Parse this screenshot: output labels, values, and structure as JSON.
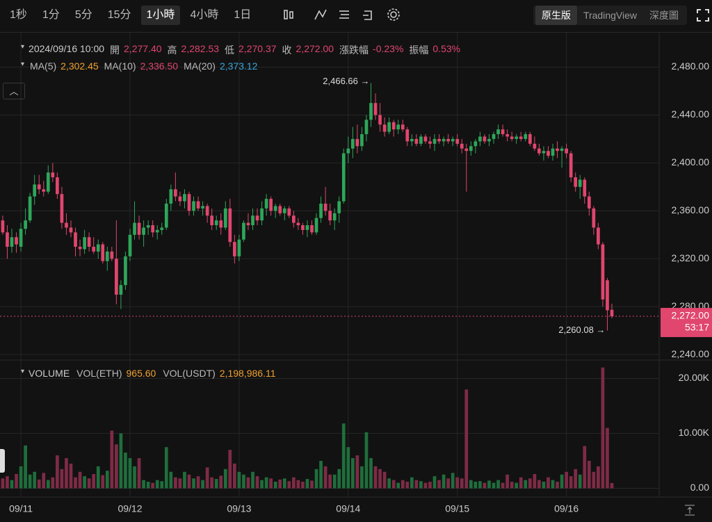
{
  "toolbar": {
    "intervals": [
      "1秒",
      "1分",
      "5分",
      "15分",
      "1小時",
      "4小時",
      "1日"
    ],
    "active": 4,
    "views": [
      "原生版",
      "TradingView",
      "深度圖"
    ],
    "active_view": 0
  },
  "info": {
    "time": "2024/09/16 10:00",
    "fields": [
      {
        "label": "開",
        "value": "2,277.40"
      },
      {
        "label": "高",
        "value": "2,282.53"
      },
      {
        "label": "低",
        "value": "2,270.37"
      },
      {
        "label": "收",
        "value": "2,272.00"
      },
      {
        "label": "漲跌幅",
        "value": "-0.23%"
      },
      {
        "label": "振幅",
        "value": "0.53%"
      }
    ],
    "ma": [
      {
        "label": "MA(5)",
        "value": "2,302.45",
        "color": "#f0a030"
      },
      {
        "label": "MA(10)",
        "value": "2,336.50",
        "color": "#e0466e"
      },
      {
        "label": "MA(20)",
        "value": "2,373.12",
        "color": "#3aa6dd"
      }
    ],
    "volume_title": "VOLUME",
    "volume_fields": [
      {
        "label": "VOL(ETH)",
        "value": "965.60"
      },
      {
        "label": "VOL(USDT)",
        "value": "2,198,986.11"
      }
    ]
  },
  "chart_data": {
    "type": "candlestick",
    "up_color": "#2ea65a",
    "down_color": "#e0466e",
    "volume_up_color": "#1f6e3c",
    "volume_down_color": "#7e2b46",
    "grid": true,
    "xlim": [
      -0.6,
      144.4
    ],
    "xticks": [
      {
        "value": 4,
        "label": "09/11"
      },
      {
        "value": 28,
        "label": "09/12"
      },
      {
        "value": 52,
        "label": "09/13"
      },
      {
        "value": 76,
        "label": "09/14"
      },
      {
        "value": 100,
        "label": "09/15"
      },
      {
        "value": 124,
        "label": "09/16"
      }
    ],
    "ylim": [
      2236,
      2507
    ],
    "yticks": [
      {
        "value": 2240,
        "label": "2,240.00"
      },
      {
        "value": 2280,
        "label": "2,280.00"
      },
      {
        "value": 2320,
        "label": "2,320.00"
      },
      {
        "value": 2360,
        "label": "2,360.00"
      },
      {
        "value": 2400,
        "label": "2,400.00"
      },
      {
        "value": 2440,
        "label": "2,440.00"
      },
      {
        "value": 2480,
        "label": "2,480.00"
      }
    ],
    "vol_ylim": [
      -1200,
      23100
    ],
    "vol_yticks": [
      {
        "value": 0,
        "label": "0.00"
      },
      {
        "value": 10000,
        "label": "10.00K"
      },
      {
        "value": 20000,
        "label": "20.00K"
      }
    ],
    "last_price": {
      "value": 2272,
      "label": "2,272.00"
    },
    "countdown": "53:17",
    "max_mark": {
      "index": 81,
      "value": 2466.66,
      "label": "2,466.66 →"
    },
    "min_mark": {
      "index": 133,
      "value": 2260.08,
      "label": "2,260.08 →"
    },
    "candles": [
      [
        2352,
        2356,
        2340,
        2342
      ],
      [
        2342,
        2348,
        2320,
        2330
      ],
      [
        2330,
        2345,
        2325,
        2338
      ],
      [
        2338,
        2342,
        2325,
        2332
      ],
      [
        2330,
        2350,
        2326,
        2345
      ],
      [
        2345,
        2362,
        2340,
        2352
      ],
      [
        2352,
        2375,
        2350,
        2372
      ],
      [
        2372,
        2390,
        2365,
        2382
      ],
      [
        2382,
        2390,
        2374,
        2378
      ],
      [
        2378,
        2385,
        2372,
        2376
      ],
      [
        2376,
        2398,
        2374,
        2392
      ],
      [
        2392,
        2400,
        2384,
        2388
      ],
      [
        2388,
        2392,
        2370,
        2374
      ],
      [
        2374,
        2380,
        2345,
        2350
      ],
      [
        2350,
        2358,
        2340,
        2346
      ],
      [
        2346,
        2352,
        2338,
        2342
      ],
      [
        2342,
        2346,
        2322,
        2330
      ],
      [
        2330,
        2336,
        2322,
        2328
      ],
      [
        2328,
        2344,
        2324,
        2338
      ],
      [
        2338,
        2342,
        2326,
        2330
      ],
      [
        2330,
        2338,
        2324,
        2326
      ],
      [
        2326,
        2336,
        2320,
        2332
      ],
      [
        2332,
        2334,
        2316,
        2318
      ],
      [
        2318,
        2330,
        2310,
        2326
      ],
      [
        2326,
        2330,
        2318,
        2320
      ],
      [
        2320,
        2352,
        2282,
        2290
      ],
      [
        2290,
        2302,
        2278,
        2298
      ],
      [
        2298,
        2326,
        2294,
        2322
      ],
      [
        2322,
        2345,
        2318,
        2340
      ],
      [
        2340,
        2368,
        2336,
        2350
      ],
      [
        2350,
        2356,
        2336,
        2340
      ],
      [
        2340,
        2352,
        2330,
        2346
      ],
      [
        2346,
        2352,
        2340,
        2348
      ],
      [
        2348,
        2352,
        2338,
        2342
      ],
      [
        2342,
        2348,
        2336,
        2344
      ],
      [
        2344,
        2350,
        2340,
        2346
      ],
      [
        2346,
        2370,
        2344,
        2366
      ],
      [
        2366,
        2382,
        2360,
        2378
      ],
      [
        2378,
        2392,
        2368,
        2372
      ],
      [
        2372,
        2376,
        2364,
        2368
      ],
      [
        2368,
        2378,
        2362,
        2374
      ],
      [
        2374,
        2376,
        2356,
        2360
      ],
      [
        2360,
        2372,
        2356,
        2368
      ],
      [
        2368,
        2372,
        2360,
        2362
      ],
      [
        2362,
        2368,
        2356,
        2364
      ],
      [
        2364,
        2366,
        2350,
        2356
      ],
      [
        2356,
        2362,
        2344,
        2348
      ],
      [
        2348,
        2356,
        2344,
        2352
      ],
      [
        2352,
        2358,
        2340,
        2346
      ],
      [
        2346,
        2368,
        2344,
        2362
      ],
      [
        2362,
        2370,
        2330,
        2334
      ],
      [
        2334,
        2340,
        2316,
        2322
      ],
      [
        2322,
        2340,
        2318,
        2336
      ],
      [
        2336,
        2352,
        2334,
        2350
      ],
      [
        2350,
        2358,
        2344,
        2348
      ],
      [
        2348,
        2362,
        2344,
        2356
      ],
      [
        2356,
        2362,
        2348,
        2352
      ],
      [
        2352,
        2368,
        2348,
        2362
      ],
      [
        2362,
        2374,
        2356,
        2370
      ],
      [
        2370,
        2372,
        2356,
        2360
      ],
      [
        2360,
        2366,
        2354,
        2364
      ],
      [
        2364,
        2366,
        2356,
        2358
      ],
      [
        2358,
        2364,
        2352,
        2362
      ],
      [
        2362,
        2364,
        2354,
        2356
      ],
      [
        2356,
        2360,
        2346,
        2350
      ],
      [
        2350,
        2354,
        2344,
        2348
      ],
      [
        2348,
        2350,
        2340,
        2344
      ],
      [
        2344,
        2352,
        2338,
        2348
      ],
      [
        2348,
        2352,
        2340,
        2342
      ],
      [
        2342,
        2358,
        2340,
        2354
      ],
      [
        2354,
        2372,
        2350,
        2366
      ],
      [
        2366,
        2380,
        2356,
        2360
      ],
      [
        2360,
        2366,
        2348,
        2352
      ],
      [
        2352,
        2362,
        2344,
        2358
      ],
      [
        2358,
        2372,
        2350,
        2368
      ],
      [
        2368,
        2412,
        2366,
        2408
      ],
      [
        2408,
        2422,
        2400,
        2412
      ],
      [
        2412,
        2430,
        2404,
        2420
      ],
      [
        2420,
        2432,
        2408,
        2414
      ],
      [
        2414,
        2430,
        2410,
        2424
      ],
      [
        2424,
        2440,
        2418,
        2436
      ],
      [
        2436,
        2466.66,
        2430,
        2450
      ],
      [
        2450,
        2458,
        2436,
        2440
      ],
      [
        2440,
        2450,
        2426,
        2432
      ],
      [
        2432,
        2438,
        2422,
        2426
      ],
      [
        2426,
        2438,
        2424,
        2434
      ],
      [
        2434,
        2436,
        2422,
        2428
      ],
      [
        2428,
        2436,
        2424,
        2432
      ],
      [
        2432,
        2436,
        2426,
        2428
      ],
      [
        2428,
        2430,
        2414,
        2418
      ],
      [
        2418,
        2424,
        2414,
        2420
      ],
      [
        2420,
        2424,
        2414,
        2416
      ],
      [
        2416,
        2424,
        2414,
        2422
      ],
      [
        2422,
        2424,
        2416,
        2418
      ],
      [
        2418,
        2422,
        2412,
        2416
      ],
      [
        2416,
        2424,
        2410,
        2420
      ],
      [
        2420,
        2424,
        2416,
        2418
      ],
      [
        2418,
        2422,
        2414,
        2420
      ],
      [
        2420,
        2424,
        2416,
        2418
      ],
      [
        2418,
        2422,
        2414,
        2420
      ],
      [
        2420,
        2424,
        2414,
        2416
      ],
      [
        2416,
        2420,
        2408,
        2412
      ],
      [
        2412,
        2416,
        2376,
        2410
      ],
      [
        2410,
        2418,
        2406,
        2414
      ],
      [
        2414,
        2420,
        2408,
        2418
      ],
      [
        2418,
        2426,
        2414,
        2422
      ],
      [
        2422,
        2424,
        2416,
        2418
      ],
      [
        2418,
        2424,
        2414,
        2420
      ],
      [
        2420,
        2426,
        2416,
        2424
      ],
      [
        2424,
        2432,
        2420,
        2428
      ],
      [
        2428,
        2432,
        2422,
        2424
      ],
      [
        2424,
        2428,
        2418,
        2422
      ],
      [
        2422,
        2426,
        2418,
        2420
      ],
      [
        2420,
        2424,
        2416,
        2422
      ],
      [
        2422,
        2426,
        2418,
        2420
      ],
      [
        2420,
        2426,
        2418,
        2424
      ],
      [
        2424,
        2426,
        2414,
        2416
      ],
      [
        2416,
        2422,
        2410,
        2412
      ],
      [
        2412,
        2416,
        2406,
        2408
      ],
      [
        2408,
        2414,
        2402,
        2410
      ],
      [
        2410,
        2414,
        2404,
        2406
      ],
      [
        2406,
        2416,
        2402,
        2412
      ],
      [
        2412,
        2418,
        2404,
        2410
      ],
      [
        2410,
        2414,
        2396,
        2412
      ],
      [
        2412,
        2416,
        2404,
        2408
      ],
      [
        2408,
        2410,
        2384,
        2388
      ],
      [
        2388,
        2392,
        2376,
        2380
      ],
      [
        2380,
        2390,
        2370,
        2386
      ],
      [
        2386,
        2388,
        2366,
        2372
      ],
      [
        2372,
        2376,
        2356,
        2362
      ],
      [
        2362,
        2364,
        2340,
        2346
      ],
      [
        2346,
        2350,
        2328,
        2332
      ],
      [
        2332,
        2334,
        2280,
        2286
      ],
      [
        2302,
        2304,
        2260.08,
        2277
      ],
      [
        2277.4,
        2282.53,
        2270.37,
        2272
      ]
    ],
    "volume": [
      1800,
      2200,
      1500,
      2600,
      4000,
      7800,
      2500,
      3000,
      1600,
      2800,
      1500,
      2000,
      6000,
      3500,
      5500,
      4500,
      2000,
      3000,
      2200,
      1800,
      2600,
      4000,
      2400,
      3200,
      10500,
      8000,
      10000,
      6500,
      5500,
      4000,
      5500,
      1500,
      1200,
      1000,
      1500,
      1300,
      7500,
      3000,
      2000,
      1800,
      3000,
      2500,
      1800,
      2200,
      1500,
      3800,
      2000,
      1700,
      2300,
      3500,
      7000,
      4500,
      3000,
      2500,
      2000,
      3000,
      2200,
      1500,
      2000,
      1800,
      1200,
      1600,
      1800,
      1300,
      2000,
      1500,
      1200,
      1700,
      1400,
      3500,
      5000,
      4000,
      2500,
      2500,
      3500,
      11800,
      7500,
      5500,
      6000,
      4000,
      10200,
      5500,
      4000,
      3500,
      3000,
      1800,
      1500,
      1000,
      1500,
      1200,
      2000,
      1500,
      1300,
      1000,
      1200,
      2200,
      1500,
      2500,
      1800,
      2800,
      2000,
      1800,
      18000,
      1500,
      1200,
      1300,
      1000,
      1400,
      1000,
      1500,
      1000,
      2500,
      1200,
      1000,
      2000,
      1500,
      1800,
      2600,
      1500,
      1200,
      2000,
      1500,
      1200,
      2500,
      3000,
      2200,
      3500,
      2500,
      7700,
      5000,
      3000,
      4000,
      22000,
      11000,
      965.6
    ]
  }
}
